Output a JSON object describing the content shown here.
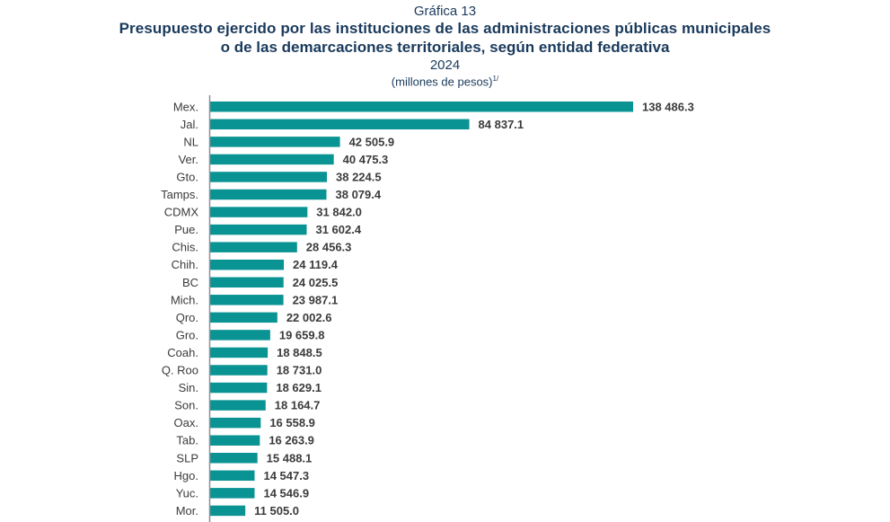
{
  "header": {
    "label": "Gráfica 13",
    "title_line1": "Presupuesto ejercido por las instituciones de las administraciones públicas municipales",
    "title_line2": "o de las demarcaciones territoriales, según entidad federativa",
    "year": "2024",
    "units": "(millones de pesos)",
    "units_note": "1/"
  },
  "colors": {
    "bar": "#0a9393",
    "axis": "#8a9099",
    "title": "#1a3a5c",
    "text": "#3b3b3b"
  },
  "chart_data": {
    "type": "bar",
    "orientation": "horizontal",
    "title": "Presupuesto ejercido por las instituciones de las administraciones públicas municipales o de las demarcaciones territoriales, según entidad federativa",
    "subtitle": "2024 (millones de pesos)",
    "xlabel": "",
    "ylabel": "",
    "xlim": [
      0,
      138486.3
    ],
    "grid": false,
    "legend": "none",
    "categories": [
      "Mex.",
      "Jal.",
      "NL",
      "Ver.",
      "Gto.",
      "Tamps.",
      "CDMX",
      "Pue.",
      "Chis.",
      "Chih.",
      "BC",
      "Mich.",
      "Qro.",
      "Gro.",
      "Coah.",
      "Q. Roo",
      "Sin.",
      "Son.",
      "Oax.",
      "Tab.",
      "SLP",
      "Hgo.",
      "Yuc.",
      "Mor."
    ],
    "values": [
      138486.3,
      84837.1,
      42505.9,
      40475.3,
      38224.5,
      38079.4,
      31842.0,
      31602.4,
      28456.3,
      24119.4,
      24025.5,
      23987.1,
      22002.6,
      19659.8,
      18848.5,
      18731.0,
      18629.1,
      18164.7,
      16558.9,
      16263.9,
      15488.1,
      14547.3,
      14546.9,
      11505.0
    ],
    "value_labels": [
      "138 486.3",
      "84 837.1",
      "42 505.9",
      "40 475.3",
      "38 224.5",
      "38 079.4",
      "31 842.0",
      "31 602.4",
      "28 456.3",
      "24 119.4",
      "24 025.5",
      "23 987.1",
      "22 002.6",
      "19 659.8",
      "18 848.5",
      "18 731.0",
      "18 629.1",
      "18 164.7",
      "16 558.9",
      "16 263.9",
      "15 488.1",
      "14 547.3",
      "14 546.9",
      "11 505.0"
    ]
  }
}
